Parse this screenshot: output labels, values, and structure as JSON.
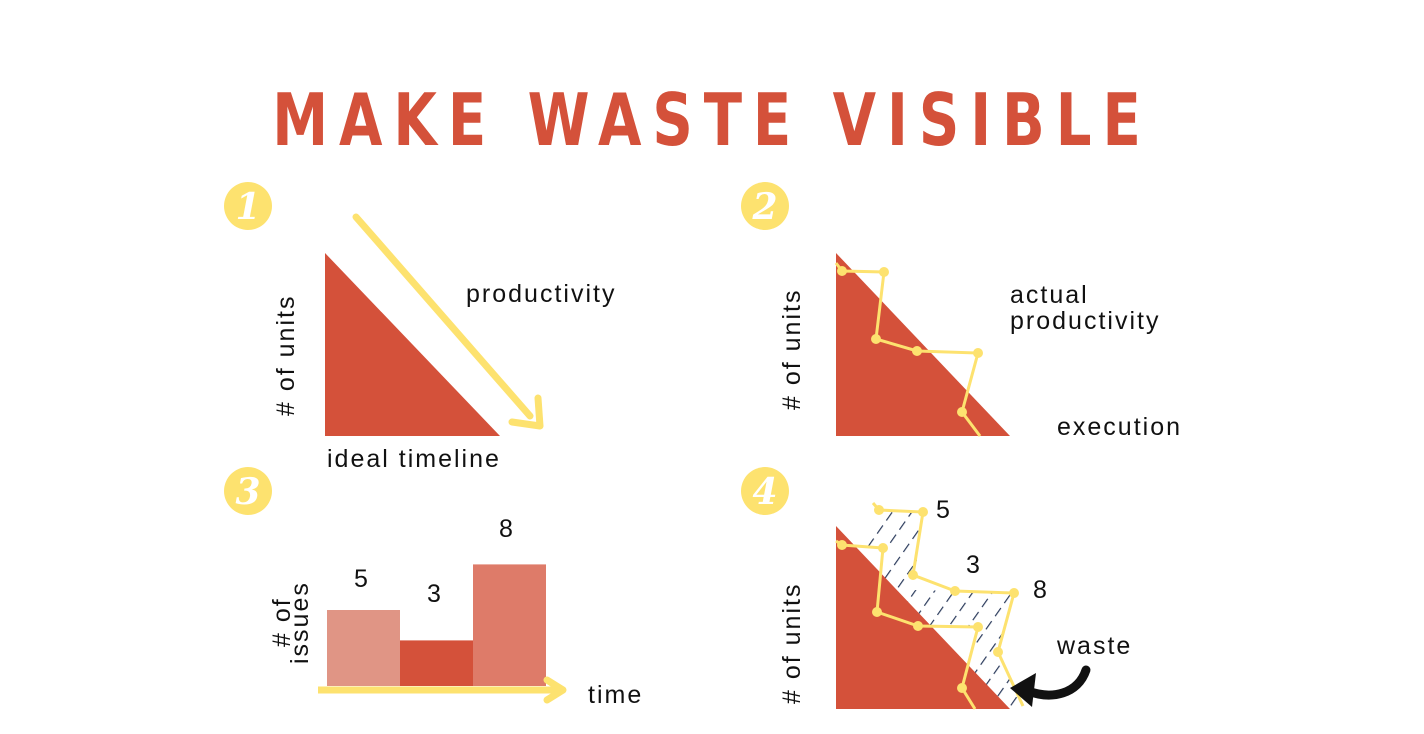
{
  "title": "MAKE WASTE VISIBLE",
  "colors": {
    "accent": "#d4513a",
    "highlight": "#fde26f",
    "bar_light": "#e09585",
    "bar_mid": "#d4513a",
    "bar_dark": "#de7b69",
    "hatch": "#2b3b5c"
  },
  "panel1": {
    "badge": "1",
    "ylabel": "# of units",
    "arrow_label": "productivity",
    "xlabel": "ideal timeline"
  },
  "panel2": {
    "badge": "2",
    "ylabel": "# of units",
    "line_label_1": "actual",
    "line_label_2": "productivity",
    "xlabel": "execution"
  },
  "panel3": {
    "badge": "3",
    "ylabel_1": "# of",
    "ylabel_2": "issues",
    "xlabel": "time",
    "chart_data": {
      "type": "bar",
      "categories": [
        "",
        "",
        ""
      ],
      "values": [
        5,
        3,
        8
      ],
      "value_labels": [
        "5",
        "3",
        "8"
      ]
    }
  },
  "panel4": {
    "badge": "4",
    "ylabel": "# of units",
    "labels": [
      "5",
      "3",
      "8"
    ],
    "waste_label": "waste"
  }
}
